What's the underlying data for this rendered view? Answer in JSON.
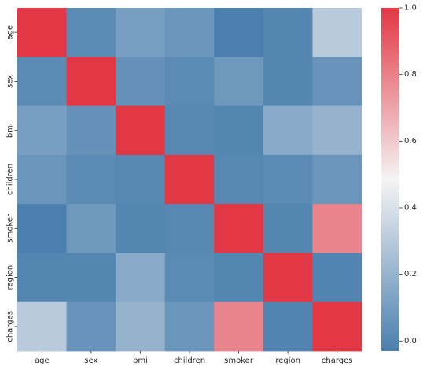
{
  "chart_data": {
    "type": "heatmap",
    "title": "",
    "xlabel": "",
    "ylabel": "",
    "rows": [
      "age",
      "sex",
      "bmi",
      "children",
      "smoker",
      "region",
      "charges"
    ],
    "columns": [
      "age",
      "sex",
      "bmi",
      "children",
      "smoker",
      "region",
      "charges"
    ],
    "values": [
      [
        1.0,
        0.02,
        0.11,
        0.07,
        -0.03,
        0.0,
        0.3
      ],
      [
        0.02,
        1.0,
        0.05,
        0.02,
        0.08,
        0.0,
        0.06
      ],
      [
        0.11,
        0.05,
        1.0,
        0.01,
        0.0,
        0.16,
        0.2
      ],
      [
        0.07,
        0.02,
        0.01,
        1.0,
        0.01,
        0.02,
        0.07
      ],
      [
        -0.03,
        0.08,
        0.0,
        0.01,
        1.0,
        0.0,
        0.79
      ],
      [
        0.0,
        0.0,
        0.16,
        0.02,
        0.0,
        1.0,
        -0.01
      ],
      [
        0.3,
        0.06,
        0.2,
        0.07,
        0.79,
        -0.01,
        1.0
      ]
    ],
    "colorbar": {
      "min": -0.03,
      "max": 1.0,
      "ticks": [
        "0.0",
        "0.2",
        "0.4",
        "0.6",
        "0.8",
        "1.0"
      ],
      "tick_values": [
        0.0,
        0.2,
        0.4,
        0.6,
        0.8,
        1.0
      ]
    },
    "colors": {
      "low": "#4a7fae",
      "mid": "#f5f4f4",
      "high": "#e23744"
    }
  }
}
